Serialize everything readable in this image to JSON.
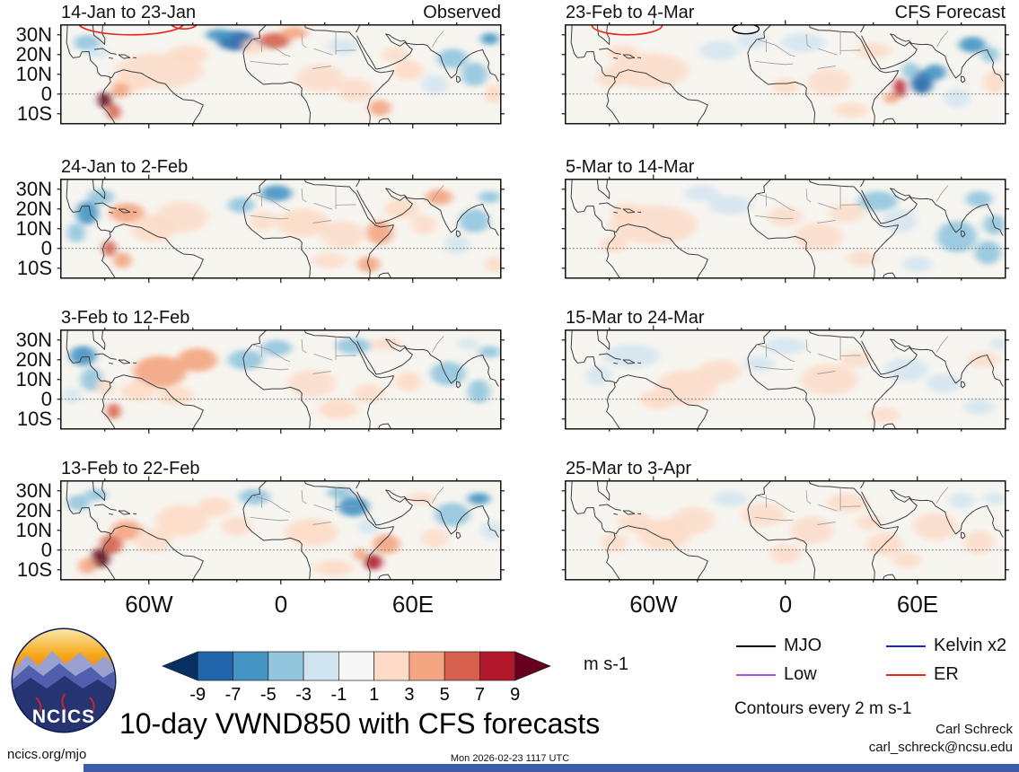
{
  "figure": {
    "title": "10-day VWND850 with CFS forecasts",
    "units_label": "m s-1",
    "contour_note": "Contours every 2 m s-1",
    "credit_name": "Carl Schreck",
    "credit_email": "carl_schreck@ncsu.edu",
    "site_url": "ncics.org/mjo",
    "timestamp": "Mon 2026-02-23 1117 UTC",
    "logo_text": "NCICS",
    "footer_bar_color": "#3d5ba9"
  },
  "legend": [
    {
      "label": "MJO",
      "color": "#000000"
    },
    {
      "label": "Kelvin x2",
      "color": "#1f1fd6"
    },
    {
      "label": "Low",
      "color": "#a855e8"
    },
    {
      "label": "ER",
      "color": "#e8281e"
    }
  ],
  "chart_data": {
    "type": "heatmap",
    "title": "10-day VWND850 with CFS forecasts",
    "variable": "850-hPa meridional wind anomaly",
    "units": "m s-1",
    "lon_range": [
      -100,
      100
    ],
    "lat_range": [
      -15,
      35
    ],
    "map_background": "#f7f5f0",
    "x_ticks": [
      {
        "value": -60,
        "label": "60W"
      },
      {
        "value": 0,
        "label": "0"
      },
      {
        "value": 60,
        "label": "60E"
      }
    ],
    "y_ticks": [
      {
        "value": 30,
        "label": "30N"
      },
      {
        "value": 20,
        "label": "20N"
      },
      {
        "value": 10,
        "label": "10N"
      },
      {
        "value": 0,
        "label": "0"
      },
      {
        "value": -10,
        "label": "10S"
      }
    ],
    "levels": [
      -9,
      -7,
      -5,
      -3,
      -1,
      1,
      3,
      5,
      7,
      9
    ],
    "colors": [
      "#053061",
      "#2166ac",
      "#4393c3",
      "#92c5de",
      "#d1e5f0",
      "#f7f7f7",
      "#fddbc7",
      "#f4a582",
      "#d6604d",
      "#b2182b",
      "#67001f"
    ],
    "panels": [
      {
        "title": "14-Jan to 23-Jan",
        "corner_label": "Observed",
        "column": 0,
        "row": 0,
        "anomalies": [
          [
            -88,
            26,
            -3,
            6,
            4
          ],
          [
            -84,
            21,
            -2,
            5,
            3
          ],
          [
            -20,
            27,
            -8,
            9,
            5
          ],
          [
            -28,
            30,
            -5,
            6,
            3
          ],
          [
            -12,
            24,
            3,
            5,
            4
          ],
          [
            -3,
            27,
            6,
            7,
            4
          ],
          [
            6,
            31,
            5,
            6,
            3
          ],
          [
            -55,
            12,
            2,
            20,
            9
          ],
          [
            -42,
            20,
            3,
            9,
            5
          ],
          [
            -68,
            6,
            3,
            8,
            5
          ],
          [
            -80,
            -3,
            10,
            3,
            4
          ],
          [
            -76,
            -9,
            7,
            3,
            4
          ],
          [
            -73,
            2,
            5,
            4,
            4
          ],
          [
            28,
            24,
            -2,
            7,
            4
          ],
          [
            18,
            8,
            2,
            11,
            7
          ],
          [
            34,
            2,
            2,
            8,
            6
          ],
          [
            45,
            -7,
            5,
            5,
            4
          ],
          [
            58,
            12,
            3,
            7,
            5
          ],
          [
            52,
            20,
            2,
            6,
            4
          ],
          [
            78,
            18,
            -4,
            7,
            5
          ],
          [
            88,
            10,
            -3,
            6,
            6
          ],
          [
            95,
            28,
            -5,
            4,
            3
          ],
          [
            70,
            5,
            -2,
            6,
            5
          ],
          [
            97,
            0,
            3,
            4,
            5
          ]
        ],
        "er_contours": [
          [
            -68,
            36,
            24,
            6
          ],
          [
            -44,
            36,
            6,
            3
          ]
        ],
        "mjo_contours": []
      },
      {
        "title": "23-Feb to 4-Mar",
        "corner_label": "CFS Forecast",
        "column": 1,
        "row": 0,
        "anomalies": [
          [
            -62,
            12,
            2,
            18,
            9
          ],
          [
            -74,
            21,
            3,
            7,
            4
          ],
          [
            -80,
            8,
            2,
            6,
            5
          ],
          [
            -30,
            22,
            -2,
            9,
            5
          ],
          [
            -15,
            27,
            -2,
            7,
            4
          ],
          [
            8,
            26,
            -2,
            10,
            5
          ],
          [
            20,
            6,
            2,
            10,
            7
          ],
          [
            0,
            4,
            3,
            6,
            4
          ],
          [
            40,
            22,
            2,
            8,
            4
          ],
          [
            62,
            6,
            -7,
            5,
            6
          ],
          [
            68,
            11,
            -5,
            5,
            4
          ],
          [
            57,
            12,
            -4,
            4,
            4
          ],
          [
            52,
            3,
            8,
            2.5,
            5
          ],
          [
            48,
            -2,
            4,
            3,
            3
          ],
          [
            85,
            25,
            -6,
            6,
            4
          ],
          [
            93,
            20,
            -3,
            4,
            4
          ],
          [
            95,
            6,
            3,
            5,
            6
          ],
          [
            78,
            -2,
            -2,
            6,
            5
          ],
          [
            30,
            -8,
            2,
            8,
            4
          ]
        ],
        "er_contours": [
          [
            -72,
            35,
            16,
            5
          ]
        ],
        "mjo_contours": [
          [
            -18,
            33,
            6,
            2.5
          ]
        ]
      },
      {
        "title": "24-Jan to 2-Feb",
        "column": 0,
        "row": 1,
        "anomalies": [
          [
            -88,
            18,
            -6,
            5,
            6
          ],
          [
            -82,
            26,
            -4,
            6,
            4
          ],
          [
            -93,
            8,
            -3,
            4,
            5
          ],
          [
            -70,
            18,
            4,
            8,
            5
          ],
          [
            -58,
            10,
            3,
            10,
            7
          ],
          [
            -45,
            16,
            2,
            12,
            8
          ],
          [
            -78,
            0,
            7,
            3,
            4
          ],
          [
            -72,
            -6,
            4,
            4,
            4
          ],
          [
            -18,
            22,
            -3,
            6,
            4
          ],
          [
            -2,
            28,
            -6,
            7,
            4
          ],
          [
            -8,
            14,
            2,
            6,
            5
          ],
          [
            10,
            13,
            3,
            12,
            7
          ],
          [
            28,
            7,
            2,
            10,
            7
          ],
          [
            22,
            -6,
            2,
            8,
            4
          ],
          [
            45,
            8,
            4,
            6,
            6
          ],
          [
            55,
            20,
            3,
            8,
            5
          ],
          [
            40,
            -8,
            4,
            5,
            4
          ],
          [
            72,
            26,
            4,
            6,
            4
          ],
          [
            65,
            12,
            2,
            6,
            5
          ],
          [
            88,
            14,
            -3,
            7,
            6
          ],
          [
            95,
            26,
            -3,
            5,
            3
          ],
          [
            80,
            2,
            -2,
            6,
            5
          ],
          [
            97,
            -8,
            3,
            4,
            4
          ]
        ],
        "er_contours": [],
        "mjo_contours": []
      },
      {
        "title": "5-Mar to 14-Mar",
        "column": 1,
        "row": 1,
        "anomalies": [
          [
            -60,
            12,
            2,
            20,
            10
          ],
          [
            -72,
            18,
            3,
            7,
            5
          ],
          [
            -78,
            2,
            3,
            6,
            4
          ],
          [
            -25,
            22,
            -2,
            10,
            5
          ],
          [
            -38,
            28,
            -2,
            8,
            4
          ],
          [
            15,
            6,
            2,
            11,
            7
          ],
          [
            0,
            16,
            2,
            8,
            5
          ],
          [
            28,
            18,
            2,
            8,
            5
          ],
          [
            42,
            24,
            -3,
            9,
            5
          ],
          [
            52,
            14,
            -2,
            8,
            6
          ],
          [
            78,
            6,
            -3,
            9,
            8
          ],
          [
            92,
            -2,
            -4,
            6,
            6
          ],
          [
            95,
            12,
            -3,
            5,
            5
          ],
          [
            88,
            25,
            -3,
            6,
            4
          ],
          [
            60,
            -8,
            -2,
            7,
            4
          ],
          [
            35,
            -5,
            2,
            7,
            4
          ]
        ],
        "er_contours": [],
        "mjo_contours": []
      },
      {
        "title": "3-Feb to 12-Feb",
        "column": 0,
        "row": 2,
        "anomalies": [
          [
            -90,
            22,
            -5,
            6,
            5
          ],
          [
            -86,
            10,
            -4,
            5,
            6
          ],
          [
            -95,
            2,
            -2,
            4,
            4
          ],
          [
            -55,
            14,
            5,
            12,
            8
          ],
          [
            -38,
            20,
            4,
            9,
            6
          ],
          [
            -65,
            4,
            3,
            8,
            5
          ],
          [
            -48,
            2,
            3,
            8,
            5
          ],
          [
            -76,
            -6,
            6,
            3,
            4
          ],
          [
            -80,
            6,
            3,
            4,
            4
          ],
          [
            -16,
            20,
            -3,
            8,
            5
          ],
          [
            -2,
            26,
            -3,
            7,
            4
          ],
          [
            33,
            27,
            -4,
            8,
            4
          ],
          [
            48,
            28,
            3,
            7,
            3
          ],
          [
            14,
            8,
            2,
            11,
            7
          ],
          [
            26,
            -5,
            3,
            9,
            5
          ],
          [
            40,
            3,
            2,
            7,
            5
          ],
          [
            58,
            9,
            3,
            6,
            5
          ],
          [
            76,
            13,
            -3,
            8,
            6
          ],
          [
            90,
            4,
            -4,
            5,
            6
          ],
          [
            95,
            24,
            -3,
            5,
            3
          ],
          [
            85,
            28,
            -2,
            5,
            3
          ]
        ],
        "er_contours": [],
        "mjo_contours": []
      },
      {
        "title": "15-Mar to 24-Mar",
        "column": 1,
        "row": 2,
        "anomalies": [
          [
            -70,
            22,
            -2,
            13,
            6
          ],
          [
            -85,
            12,
            -2,
            6,
            5
          ],
          [
            -45,
            6,
            2,
            14,
            9
          ],
          [
            -58,
            0,
            3,
            8,
            5
          ],
          [
            -30,
            14,
            2,
            10,
            6
          ],
          [
            0,
            27,
            -2,
            10,
            4
          ],
          [
            -12,
            18,
            -2,
            7,
            4
          ],
          [
            20,
            10,
            2,
            13,
            8
          ],
          [
            32,
            20,
            2,
            7,
            4
          ],
          [
            55,
            15,
            -2,
            10,
            6
          ],
          [
            72,
            8,
            -2,
            8,
            5
          ],
          [
            88,
            -4,
            -2,
            7,
            4
          ],
          [
            90,
            20,
            2,
            7,
            4
          ],
          [
            97,
            28,
            -2,
            4,
            3
          ],
          [
            45,
            -8,
            2,
            7,
            4
          ]
        ],
        "er_contours": [],
        "mjo_contours": []
      },
      {
        "title": "13-Feb to 22-Feb",
        "column": 0,
        "row": 3,
        "anomalies": [
          [
            -82,
            -4,
            10,
            4,
            5
          ],
          [
            -77,
            3,
            6,
            5,
            5
          ],
          [
            -70,
            10,
            4,
            7,
            5
          ],
          [
            -88,
            -8,
            5,
            4,
            4
          ],
          [
            -92,
            24,
            -4,
            5,
            4
          ],
          [
            -84,
            28,
            -3,
            5,
            3
          ],
          [
            -45,
            15,
            3,
            12,
            8
          ],
          [
            -30,
            22,
            3,
            8,
            5
          ],
          [
            -58,
            5,
            2,
            9,
            6
          ],
          [
            -12,
            27,
            -3,
            7,
            4
          ],
          [
            -20,
            12,
            2,
            7,
            5
          ],
          [
            33,
            22,
            -6,
            7,
            5
          ],
          [
            27,
            29,
            -4,
            6,
            3
          ],
          [
            40,
            12,
            -2,
            5,
            4
          ],
          [
            42,
            -6,
            8,
            4,
            4
          ],
          [
            48,
            3,
            4,
            6,
            5
          ],
          [
            36,
            -2,
            5,
            3,
            3
          ],
          [
            14,
            9,
            3,
            12,
            7
          ],
          [
            24,
            -9,
            3,
            9,
            4
          ],
          [
            78,
            18,
            -3,
            8,
            6
          ],
          [
            90,
            26,
            -5,
            5,
            3
          ],
          [
            96,
            10,
            -2,
            5,
            5
          ],
          [
            64,
            26,
            3,
            6,
            3
          ],
          [
            70,
            6,
            2,
            6,
            5
          ]
        ],
        "er_contours": [],
        "mjo_contours": []
      },
      {
        "title": "25-Mar to 3-Apr",
        "column": 1,
        "row": 3,
        "anomalies": [
          [
            -55,
            8,
            3,
            12,
            8
          ],
          [
            -42,
            15,
            2,
            10,
            7
          ],
          [
            -68,
            14,
            2,
            8,
            5
          ],
          [
            -78,
            4,
            2,
            6,
            5
          ],
          [
            -10,
            18,
            2,
            10,
            6
          ],
          [
            -25,
            26,
            -2,
            8,
            4
          ],
          [
            28,
            24,
            2,
            9,
            5
          ],
          [
            12,
            10,
            2,
            10,
            7
          ],
          [
            45,
            3,
            3,
            8,
            6
          ],
          [
            55,
            -5,
            2,
            7,
            4
          ],
          [
            38,
            14,
            2,
            6,
            4
          ],
          [
            68,
            12,
            2,
            10,
            7
          ],
          [
            88,
            4,
            2,
            7,
            6
          ],
          [
            95,
            26,
            -2,
            5,
            3
          ],
          [
            80,
            25,
            -2,
            6,
            4
          ],
          [
            0,
            -2,
            2,
            7,
            5
          ]
        ],
        "er_contours": [],
        "mjo_contours": []
      }
    ]
  }
}
